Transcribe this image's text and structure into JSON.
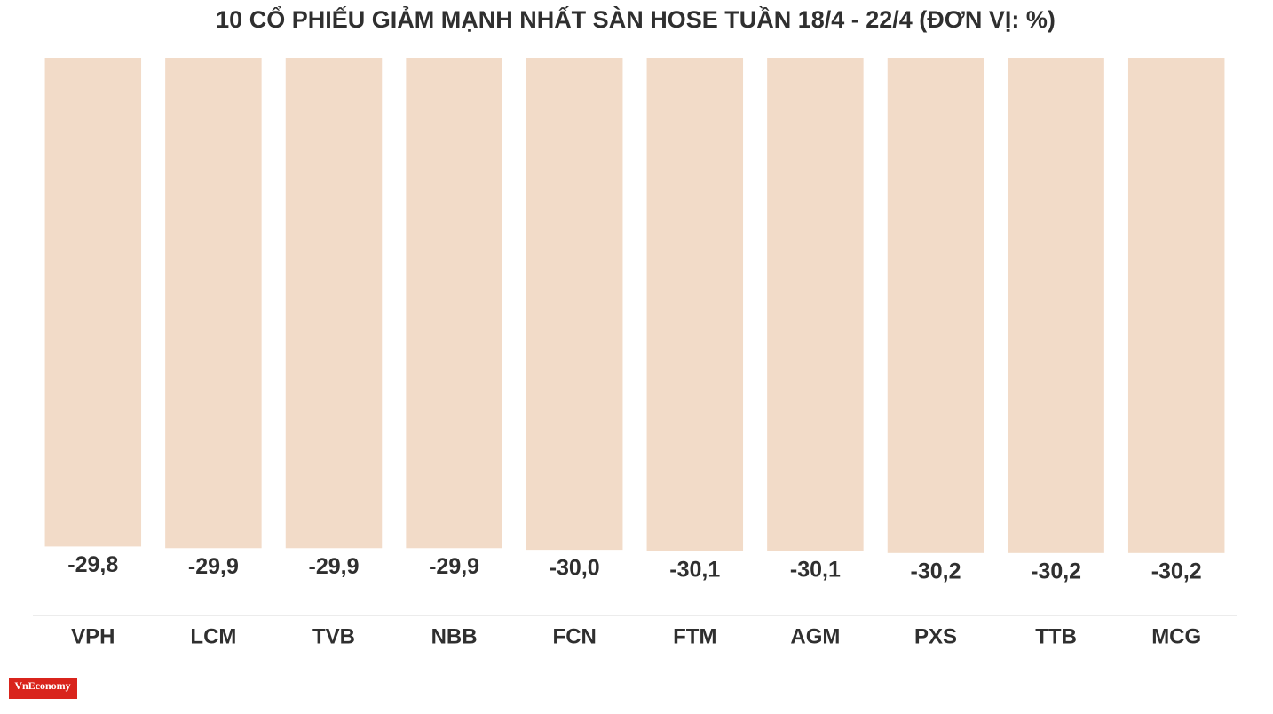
{
  "chart_data": {
    "type": "bar",
    "title": "10 CỔ PHIẾU GIẢM MẠNH NHẤT SÀN HOSE TUẦN 18/4 - 22/4 (ĐƠN VỊ: %)",
    "categories": [
      "VPH",
      "LCM",
      "TVB",
      "NBB",
      "FCN",
      "FTM",
      "AGM",
      "PXS",
      "TTB",
      "MCG"
    ],
    "values": [
      -29.8,
      -29.9,
      -29.9,
      -29.9,
      -30.0,
      -30.1,
      -30.1,
      -30.2,
      -30.2,
      -30.2
    ],
    "value_labels": [
      "-29,8",
      "-29,9",
      "-29,9",
      "-29,9",
      "-30,0",
      "-30,1",
      "-30,1",
      "-30,2",
      "-30,2",
      "-30,2"
    ],
    "color": "#f2dbc8",
    "ylim": [
      -34,
      0
    ],
    "logo": "VnEconomy"
  }
}
